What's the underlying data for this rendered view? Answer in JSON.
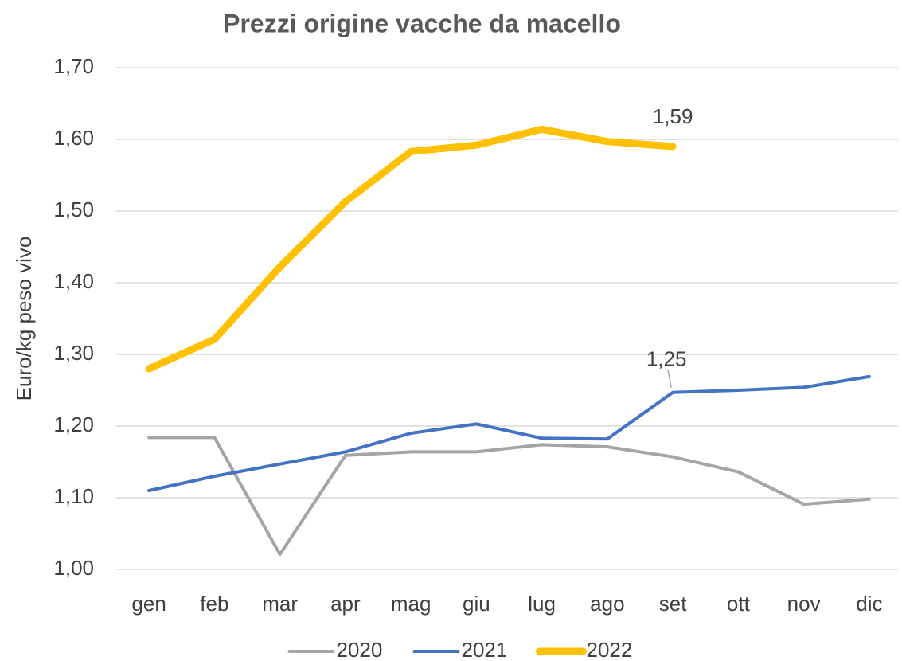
{
  "chart_data": {
    "type": "line",
    "title": "Prezzi origine vacche da macello",
    "y_label": "Euro/kg peso vivo",
    "categories": [
      "gen",
      "feb",
      "mar",
      "apr",
      "mag",
      "giu",
      "lug",
      "ago",
      "set",
      "ott",
      "nov",
      "dic"
    ],
    "series": [
      {
        "name": "2020",
        "color": "#a5a5a5",
        "line_width": 4,
        "values": [
          1.184,
          1.184,
          1.021,
          1.159,
          1.164,
          1.164,
          1.174,
          1.171,
          1.157,
          1.136,
          1.091,
          1.098
        ]
      },
      {
        "name": "2021",
        "color": "#4472c4",
        "line_width": 4,
        "values": [
          1.11,
          1.13,
          1.147,
          1.164,
          1.19,
          1.203,
          1.183,
          1.182,
          1.247,
          1.25,
          1.254,
          1.269
        ],
        "value_labels": [
          null,
          null,
          null,
          null,
          null,
          null,
          null,
          null,
          "1,25",
          null,
          null,
          null
        ]
      },
      {
        "name": "2022",
        "color": "#ffc000",
        "line_width": 9,
        "values": [
          1.28,
          1.321,
          1.422,
          1.513,
          1.583,
          1.592,
          1.614,
          1.597,
          1.59,
          null,
          null,
          null
        ],
        "value_labels": [
          null,
          null,
          null,
          null,
          null,
          null,
          null,
          null,
          "1,59",
          null,
          null,
          null
        ]
      }
    ],
    "ylim": [
      1.0,
      1.7
    ],
    "yticks": [
      {
        "value": 1.0,
        "label": "1,00"
      },
      {
        "value": 1.1,
        "label": "1,10"
      },
      {
        "value": 1.2,
        "label": "1,20"
      },
      {
        "value": 1.3,
        "label": "1,30"
      },
      {
        "value": 1.4,
        "label": "1,40"
      },
      {
        "value": 1.5,
        "label": "1,50"
      },
      {
        "value": 1.6,
        "label": "1,60"
      },
      {
        "value": 1.7,
        "label": "1,70"
      }
    ],
    "grid": true,
    "legend": "bottom"
  }
}
